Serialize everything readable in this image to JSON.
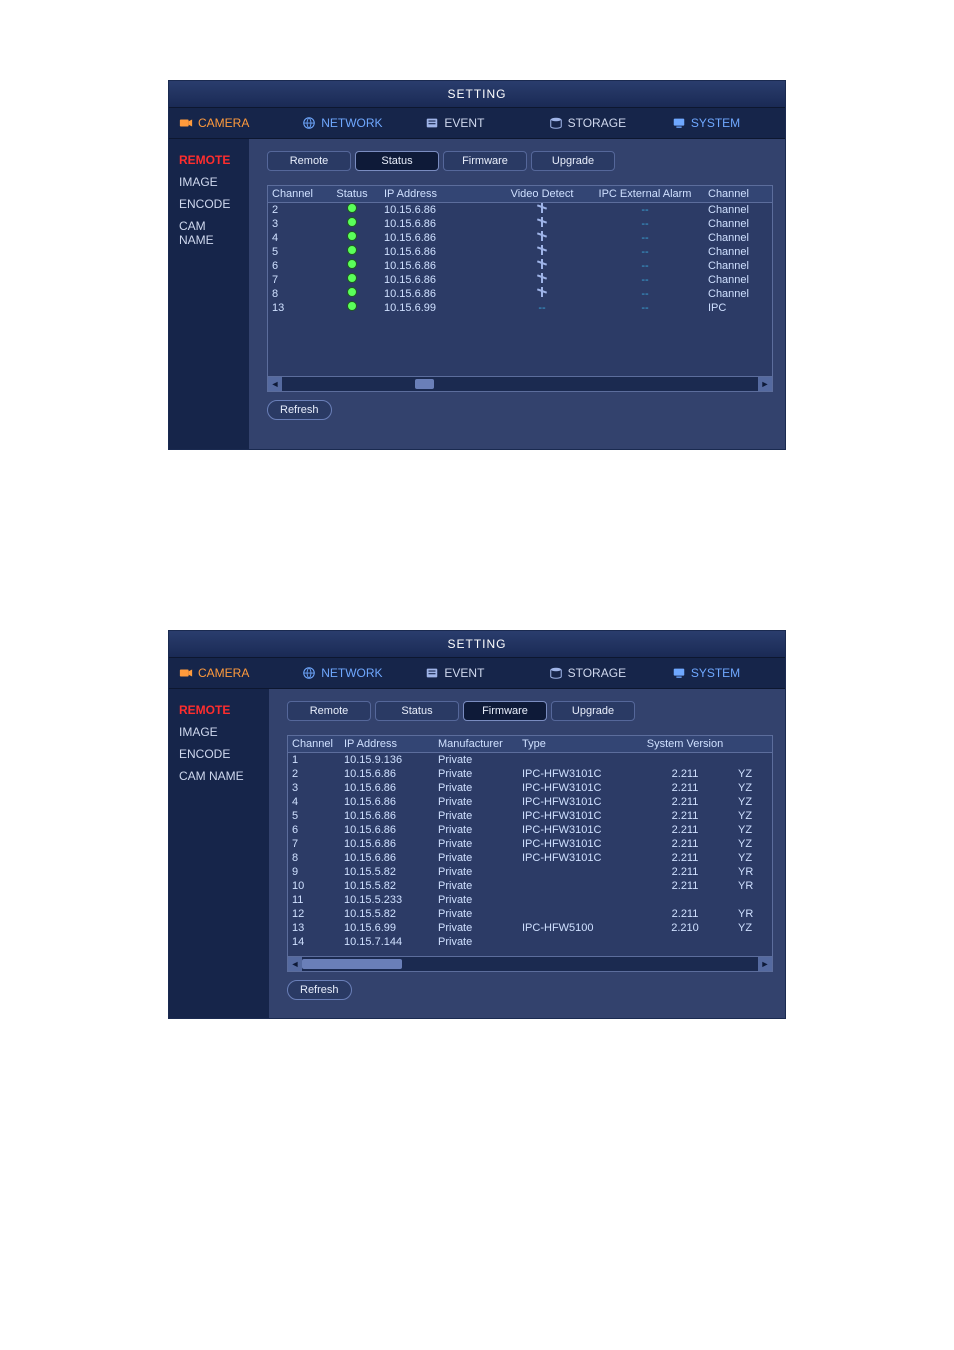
{
  "colors": {
    "panel_bg": "#33426d",
    "dark_bg": "#16254a",
    "border": "#5c6d9c",
    "accent_orange": "#ff9a3c",
    "accent_red": "#ff2d2d",
    "text": "#d0d8e8",
    "link_blue": "#6fa8ff",
    "status_green": "#5aff5a",
    "dash_cyan": "#3aa7d9"
  },
  "title": "SETTING",
  "topnav": {
    "camera": "CAMERA",
    "network": "NETWORK",
    "event": "EVENT",
    "storage": "STORAGE",
    "system": "SYSTEM"
  },
  "sidebar": {
    "remote": "REMOTE",
    "image": "IMAGE",
    "encode": "ENCODE",
    "camname": "CAM NAME"
  },
  "subtabs": {
    "remote": "Remote",
    "status": "Status",
    "firmware": "Firmware",
    "upgrade": "Upgrade"
  },
  "buttons": {
    "refresh": "Refresh"
  },
  "panel1": {
    "active_subtab": "status",
    "columns": {
      "channel": "Channel",
      "status": "Status",
      "ip": "IP Address",
      "video_detect": "Video Detect",
      "ipc_ext_alarm": "IPC External Alarm",
      "channel_name": "Channel"
    },
    "rows": [
      {
        "ch": "2",
        "ip": "10.15.6.86",
        "vd": "run",
        "alarm": "--",
        "name": "Channel"
      },
      {
        "ch": "3",
        "ip": "10.15.6.86",
        "vd": "run",
        "alarm": "--",
        "name": "Channel"
      },
      {
        "ch": "4",
        "ip": "10.15.6.86",
        "vd": "run",
        "alarm": "--",
        "name": "Channel"
      },
      {
        "ch": "5",
        "ip": "10.15.6.86",
        "vd": "run",
        "alarm": "--",
        "name": "Channel"
      },
      {
        "ch": "6",
        "ip": "10.15.6.86",
        "vd": "run",
        "alarm": "--",
        "name": "Channel"
      },
      {
        "ch": "7",
        "ip": "10.15.6.86",
        "vd": "run",
        "alarm": "--",
        "name": "Channel"
      },
      {
        "ch": "8",
        "ip": "10.15.6.86",
        "vd": "run",
        "alarm": "--",
        "name": "Channel"
      },
      {
        "ch": "13",
        "ip": "10.15.6.99",
        "vd": "--",
        "alarm": "--",
        "name": "IPC"
      }
    ],
    "scroll_thumb": {
      "left_pct": 28,
      "width_pct": 4
    }
  },
  "panel2": {
    "active_subtab": "firmware",
    "columns": {
      "channel": "Channel",
      "ip": "IP Address",
      "manufacturer": "Manufacturer",
      "type": "Type",
      "sysver": "System Version",
      "extra": ""
    },
    "rows": [
      {
        "ch": "1",
        "ip": "10.15.9.136",
        "man": "Private",
        "type": "",
        "ver": "",
        "ex": ""
      },
      {
        "ch": "2",
        "ip": "10.15.6.86",
        "man": "Private",
        "type": "IPC-HFW3101C",
        "ver": "2.211",
        "ex": "YZ"
      },
      {
        "ch": "3",
        "ip": "10.15.6.86",
        "man": "Private",
        "type": "IPC-HFW3101C",
        "ver": "2.211",
        "ex": "YZ"
      },
      {
        "ch": "4",
        "ip": "10.15.6.86",
        "man": "Private",
        "type": "IPC-HFW3101C",
        "ver": "2.211",
        "ex": "YZ"
      },
      {
        "ch": "5",
        "ip": "10.15.6.86",
        "man": "Private",
        "type": "IPC-HFW3101C",
        "ver": "2.211",
        "ex": "YZ"
      },
      {
        "ch": "6",
        "ip": "10.15.6.86",
        "man": "Private",
        "type": "IPC-HFW3101C",
        "ver": "2.211",
        "ex": "YZ"
      },
      {
        "ch": "7",
        "ip": "10.15.6.86",
        "man": "Private",
        "type": "IPC-HFW3101C",
        "ver": "2.211",
        "ex": "YZ"
      },
      {
        "ch": "8",
        "ip": "10.15.6.86",
        "man": "Private",
        "type": "IPC-HFW3101C",
        "ver": "2.211",
        "ex": "YZ"
      },
      {
        "ch": "9",
        "ip": "10.15.5.82",
        "man": "Private",
        "type": "",
        "ver": "2.211",
        "ex": "YR"
      },
      {
        "ch": "10",
        "ip": "10.15.5.82",
        "man": "Private",
        "type": "",
        "ver": "2.211",
        "ex": "YR"
      },
      {
        "ch": "11",
        "ip": "10.15.5.233",
        "man": "Private",
        "type": "",
        "ver": "",
        "ex": ""
      },
      {
        "ch": "12",
        "ip": "10.15.5.82",
        "man": "Private",
        "type": "",
        "ver": "2.211",
        "ex": "YR"
      },
      {
        "ch": "13",
        "ip": "10.15.6.99",
        "man": "Private",
        "type": "IPC-HFW5100",
        "ver": "2.210",
        "ex": "YZ"
      },
      {
        "ch": "14",
        "ip": "10.15.7.144",
        "man": "Private",
        "type": "",
        "ver": "",
        "ex": ""
      }
    ],
    "scroll_thumb": {
      "left_pct": 0,
      "width_pct": 22
    }
  }
}
